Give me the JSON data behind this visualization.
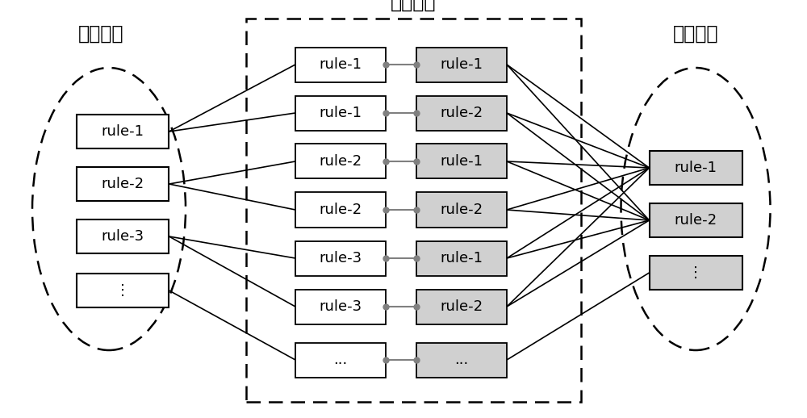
{
  "bg_color": "#ffffff",
  "left_label": "良性规则",
  "middle_label": "弱分类器",
  "right_label": "恶性规则",
  "left_boxes": [
    "rule-1",
    "rule-2",
    "rule-3",
    "⋮"
  ],
  "mid_pairs": [
    [
      "rule-1",
      "rule-1"
    ],
    [
      "rule-1",
      "rule-2"
    ],
    [
      "rule-2",
      "rule-1"
    ],
    [
      "rule-2",
      "rule-2"
    ],
    [
      "rule-3",
      "rule-1"
    ],
    [
      "rule-3",
      "rule-2"
    ],
    [
      "...",
      "..."
    ]
  ],
  "right_boxes": [
    "rule-1",
    "rule-2",
    "⋮"
  ],
  "left_box_facecolor": "#ffffff",
  "right_box_facecolor": "#d0d0d0",
  "mid_left_box_facecolor": "#ffffff",
  "mid_right_box_facecolor": "#d0d0d0",
  "box_edge_color": "#000000",
  "line_color": "#000000",
  "connector_color": "#808080",
  "font_size": 13,
  "label_font_size": 17,
  "left_to_mid": [
    [
      0,
      [
        0,
        1
      ]
    ],
    [
      1,
      [
        2,
        3
      ]
    ],
    [
      2,
      [
        4,
        5
      ]
    ],
    [
      3,
      [
        6
      ]
    ]
  ],
  "mid_to_right": [
    [
      0,
      [
        0,
        1
      ]
    ],
    [
      1,
      [
        0,
        1
      ]
    ],
    [
      2,
      [
        0,
        1
      ]
    ],
    [
      3,
      [
        0,
        1
      ]
    ],
    [
      4,
      [
        0,
        1
      ]
    ],
    [
      5,
      [
        0,
        1
      ]
    ],
    [
      6,
      [
        2
      ]
    ]
  ]
}
